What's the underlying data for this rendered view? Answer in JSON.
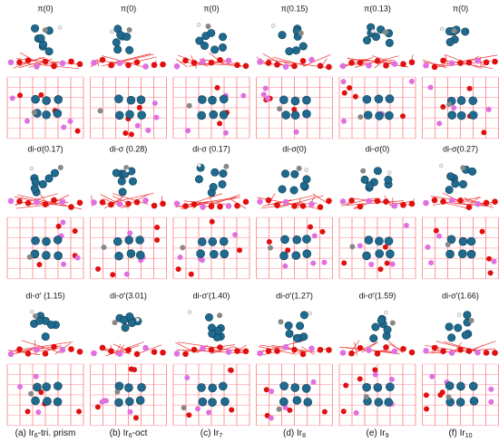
{
  "rows": [
    [
      "π(0)",
      "π(0)",
      "π(0)",
      "π(0.15)",
      "π(0.13)",
      "π(0)"
    ],
    [
      "di-σ(0.17)",
      "di-σ (0.28)",
      "di-σ (0.17)",
      "di-σ(0)",
      "di-σ(0)",
      "di-σ(0.27)"
    ],
    [
      "di-σ′ (1.15)",
      "di-σ′(3.01)",
      "di-σ′(1.40)",
      "di-σ′(1.27)",
      "di-σ′(1.59)",
      "di-σ′(1.66)"
    ]
  ],
  "captions": [
    {
      "prefix": "(a) Ir",
      "sub": "6",
      "suffix": "-tri. prism"
    },
    {
      "prefix": "(b) Ir",
      "sub": "6",
      "suffix": "-oct"
    },
    {
      "prefix": "(c) Ir",
      "sub": "7",
      "suffix": ""
    },
    {
      "prefix": "(d) Ir",
      "sub": "8",
      "suffix": ""
    },
    {
      "prefix": "(e) Ir",
      "sub": "9",
      "suffix": ""
    },
    {
      "prefix": "(f) Ir",
      "sub": "10",
      "suffix": ""
    }
  ]
}
